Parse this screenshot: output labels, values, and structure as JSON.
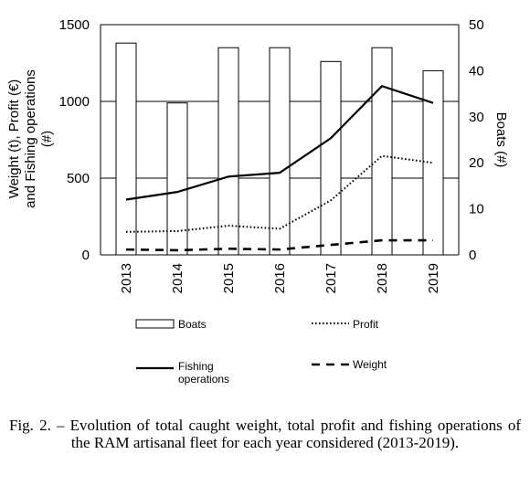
{
  "chart_data": {
    "type": "bar",
    "categories": [
      "2013",
      "2014",
      "2015",
      "2016",
      "2017",
      "2018",
      "2019"
    ],
    "series": [
      {
        "name": "Boats",
        "type": "bar",
        "axis": "right",
        "values": [
          46,
          33,
          45,
          45,
          42,
          45,
          40
        ]
      },
      {
        "name": "Fishing operations",
        "type": "line",
        "style": "solid",
        "axis": "left",
        "values": [
          360,
          410,
          510,
          535,
          760,
          1100,
          990
        ]
      },
      {
        "name": "Profit",
        "type": "line",
        "style": "dotted",
        "axis": "left",
        "values": [
          150,
          155,
          190,
          170,
          355,
          645,
          600
        ]
      },
      {
        "name": "Weight",
        "type": "line",
        "style": "dashed",
        "axis": "left",
        "values": [
          35,
          30,
          40,
          35,
          65,
          95,
          95
        ]
      }
    ],
    "ylabel": "Weight (t), Profit (€) and Fishing operations (#)",
    "ylabel_lines": [
      "Weight (t), Profit (€)",
      "and Fishing operations",
      "(#)"
    ],
    "y2label": "Boats  (#)",
    "ylim": [
      0,
      1500
    ],
    "y2lim": [
      0,
      50
    ],
    "yticks": [
      "0",
      "500",
      "1000",
      "1500"
    ],
    "y2ticks": [
      "0",
      "10",
      "20",
      "30",
      "40",
      "50"
    ],
    "grid": "horizontal",
    "legend": [
      {
        "label": "Boats",
        "symbol": "bar"
      },
      {
        "label": "Profit",
        "symbol": "dotted"
      },
      {
        "label_lines": [
          "Fishing",
          "operations"
        ],
        "symbol": "solid"
      },
      {
        "label": "Weight",
        "symbol": "dashed"
      }
    ],
    "legend_position": "bottom"
  },
  "caption": "Fig. 2. – Evolution of total caught weight, total profit and fishing operations of the RAM artisanal fleet for each year considered (2013-2019)."
}
